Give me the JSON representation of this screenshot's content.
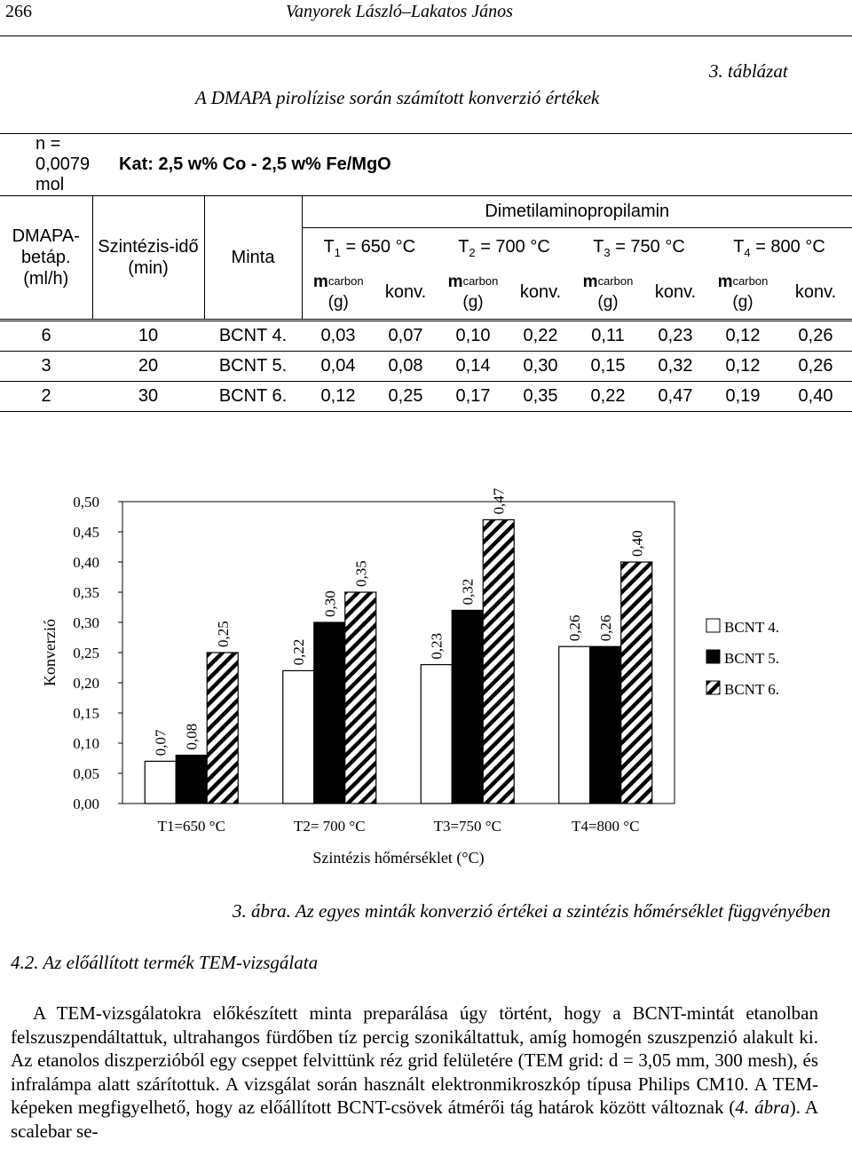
{
  "running_head": {
    "page_number": "266",
    "authors": "Vanyorek László–Lakatos János"
  },
  "table": {
    "number_label": "3.  táblázat",
    "title": "A DMAPA pirolízise során számított konverzió értékek",
    "n_label": "n = 0,0079 mol",
    "catalyst_label": "Kat: 2,5 w% Co - 2,5 w% Fe/MgO",
    "group_header": "Dimetilaminopropilamin",
    "col_dmapa": "DMAPA-betáp. (ml/h)",
    "col_time": "Szintézis-idő (min)",
    "col_sample": "Minta",
    "temperatures": [
      {
        "sym": "T",
        "idx": "1",
        "val": " = 650 °C"
      },
      {
        "sym": "T",
        "idx": "2",
        "val": " = 700 °C"
      },
      {
        "sym": "T",
        "idx": "3",
        "val": " = 750 °C"
      },
      {
        "sym": "T",
        "idx": "4",
        "val": " = 800 °C"
      }
    ],
    "mcarbon_m": "m",
    "mcarbon_sub": "carbon",
    "mcarbon_unit": "(g)",
    "konv_label": "konv.",
    "rows": [
      [
        "6",
        "10",
        "BCNT 4.",
        "0,03",
        "0,07",
        "0,10",
        "0,22",
        "0,11",
        "0,23",
        "0,12",
        "0,26"
      ],
      [
        "3",
        "20",
        "BCNT 5.",
        "0,04",
        "0,08",
        "0,14",
        "0,30",
        "0,15",
        "0,32",
        "0,12",
        "0,26"
      ],
      [
        "2",
        "30",
        "BCNT 6.",
        "0,12",
        "0,25",
        "0,17",
        "0,35",
        "0,22",
        "0,47",
        "0,19",
        "0,40"
      ]
    ]
  },
  "chart_data": {
    "type": "bar",
    "categories": [
      "T1=650 °C",
      "T2= 700 °C",
      "T3=750 °C",
      "T4=800 °C"
    ],
    "series": [
      {
        "name": "BCNT 4.",
        "values": [
          0.07,
          0.22,
          0.23,
          0.26
        ],
        "labels": [
          "0,07",
          "0,22",
          "0,23",
          "0,26"
        ],
        "fill": "white"
      },
      {
        "name": "BCNT 5.",
        "values": [
          0.08,
          0.3,
          0.32,
          0.26
        ],
        "labels": [
          "0,08",
          "0,30",
          "0,32",
          "0,26"
        ],
        "fill": "black"
      },
      {
        "name": "BCNT 6.",
        "values": [
          0.25,
          0.35,
          0.47,
          0.4
        ],
        "labels": [
          "0,25",
          "0,35",
          "0,47",
          "0,40"
        ],
        "fill": "hatched"
      }
    ],
    "ylabel": "Konverzió",
    "xlabel": "Szintézis hőmérséklet (°C)",
    "ylim": [
      0,
      0.5
    ],
    "yticks": [
      "0,00",
      "0,05",
      "0,10",
      "0,15",
      "0,20",
      "0,25",
      "0,30",
      "0,35",
      "0,40",
      "0,45",
      "0,50"
    ],
    "legend_position": "right",
    "grid": false
  },
  "figure_caption": "3. ábra. Az egyes minták konverzió értékei a szintézis hőmérséklet függvényében",
  "section_heading": "4.2. Az előállított termék TEM-vizsgálata",
  "paragraph": {
    "part1": "A TEM-vizsgálatokra előkészített minta preparálása úgy történt, hogy a BCNT-mintát etanolban felszuszpendáltattuk, ultrahangos fürdőben tíz percig szonikáltattuk, amíg homogén szuszpenzió alakult ki. Az etanolos diszperzióból egy cseppet felvittünk réz grid felületére (TEM grid: d = 3,05 mm, 300 mesh), és infralámpa alatt szárítottuk. A vizsgálat során használt elektronmikroszkóp típusa Philips CM10. A TEM-képeken megfigyelhető, hogy az előállított BCNT-csövek átmérői tág határok között változnak (",
    "fig_ref": "4. ábra",
    "part2": "). A scalebar se-"
  }
}
